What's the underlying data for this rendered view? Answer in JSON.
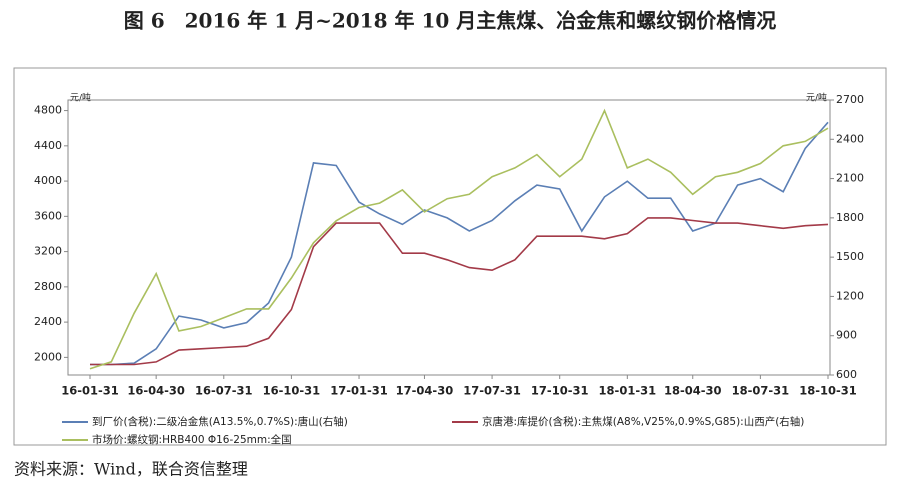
{
  "chart_data": {
    "type": "line",
    "title": "图 6　2016 年 1 月~2018 年 10 月主焦煤、冶金焦和螺纹钢价格情况",
    "source": "资料来源：Wind，联合资信整理",
    "y_unit": "元/吨",
    "y2_unit": "元/吨",
    "x": [
      "16-01-31",
      "16-02-29",
      "16-03-31",
      "16-04-30",
      "16-05-31",
      "16-06-30",
      "16-07-31",
      "16-08-31",
      "16-09-30",
      "16-10-31",
      "16-11-30",
      "16-12-31",
      "17-01-31",
      "17-02-28",
      "17-03-31",
      "17-04-30",
      "17-05-31",
      "17-06-30",
      "17-07-31",
      "17-08-31",
      "17-09-30",
      "17-10-31",
      "17-11-30",
      "17-12-31",
      "18-01-31",
      "18-02-28",
      "18-03-31",
      "18-04-30",
      "18-05-31",
      "18-06-30",
      "18-07-31",
      "18-08-31",
      "18-09-30",
      "18-10-31"
    ],
    "xticks": [
      "16-01-31",
      "16-04-30",
      "16-07-31",
      "16-10-31",
      "17-01-31",
      "17-04-30",
      "17-07-31",
      "17-10-31",
      "18-01-31",
      "18-04-30",
      "18-07-31",
      "18-10-31"
    ],
    "ylim": [
      1800,
      4920
    ],
    "yticks": [
      2000,
      2400,
      2800,
      3200,
      3600,
      4000,
      4400,
      4800
    ],
    "y2lim": [
      600,
      2700
    ],
    "y2ticks": [
      600,
      900,
      1200,
      1500,
      1800,
      2100,
      2400,
      2700
    ],
    "series": [
      {
        "name": "到厂价(含税):二级冶金焦(A13.5%,0.7%S):唐山(右轴)",
        "color": "#5b7fb5",
        "axis": "y2",
        "values": [
          680,
          680,
          690,
          800,
          1050,
          1020,
          960,
          1000,
          1150,
          1500,
          2220,
          2200,
          1920,
          1830,
          1750,
          1860,
          1800,
          1700,
          1780,
          1930,
          2050,
          2020,
          1700,
          1960,
          2080,
          1950,
          1950,
          1700,
          1760,
          2050,
          2100,
          2000,
          2330,
          2530
        ]
      },
      {
        "name": "京唐港:库提价(含税):主焦煤(A8%,V25%,0.9%S,G85):山西产(右轴)",
        "color": "#a33a48",
        "axis": "y2",
        "values": [
          680,
          680,
          680,
          700,
          790,
          800,
          810,
          820,
          880,
          1100,
          1580,
          1760,
          1760,
          1760,
          1530,
          1530,
          1480,
          1420,
          1400,
          1480,
          1660,
          1660,
          1660,
          1640,
          1680,
          1800,
          1800,
          1780,
          1760,
          1760,
          1740,
          1720,
          1740,
          1750
        ]
      },
      {
        "name": "市场价:螺纹钢:HRB400 Φ16-25mm:全国",
        "color": "#aabf5f",
        "values": [
          1870,
          1950,
          2500,
          2950,
          2300,
          2350,
          2450,
          2550,
          2550,
          2900,
          3300,
          3550,
          3700,
          3750,
          3900,
          3650,
          3800,
          3850,
          4050,
          4150,
          4300,
          4050,
          4250,
          4800,
          4150,
          4250,
          4100,
          3850,
          4050,
          4100,
          4200,
          4400,
          4450,
          4600
        ]
      }
    ]
  }
}
